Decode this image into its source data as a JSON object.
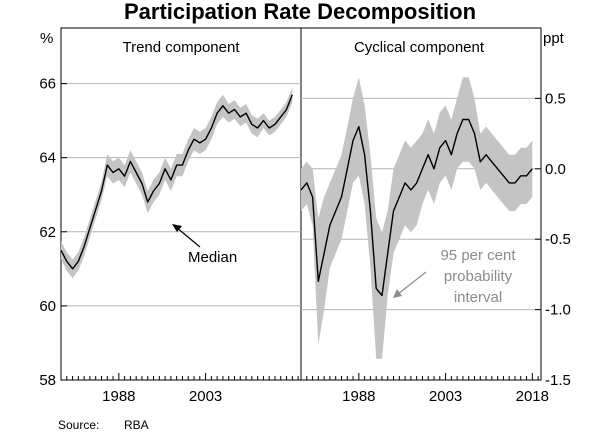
{
  "chart_data": {
    "type": "line",
    "title": "Participation Rate Decomposition",
    "source_label": "Source:",
    "source_value": "RBA",
    "panels": [
      {
        "title": "Trend component",
        "axis_unit": "%",
        "axis_side": "left",
        "ylim": [
          58,
          67.5
        ],
        "yticks": [
          58,
          60,
          62,
          64,
          66
        ],
        "ytick_labels": [
          "58",
          "60",
          "62",
          "64",
          "66"
        ],
        "xlim": [
          1978,
          2019.5
        ],
        "xticks": [
          1988,
          2003
        ],
        "xtick_labels": [
          "1988",
          "2003"
        ],
        "gridlines": [
          60,
          62,
          64,
          66
        ],
        "median_label": "Median",
        "median_series": [
          [
            1978.0,
            61.5
          ],
          [
            1979.0,
            61.2
          ],
          [
            1980.0,
            61.0
          ],
          [
            1981.0,
            61.2
          ],
          [
            1982.0,
            61.6
          ],
          [
            1983.0,
            62.1
          ],
          [
            1984.0,
            62.6
          ],
          [
            1985.0,
            63.1
          ],
          [
            1986.0,
            63.8
          ],
          [
            1987.0,
            63.6
          ],
          [
            1988.0,
            63.7
          ],
          [
            1989.0,
            63.5
          ],
          [
            1990.0,
            63.9
          ],
          [
            1991.0,
            63.6
          ],
          [
            1992.0,
            63.3
          ],
          [
            1993.0,
            62.8
          ],
          [
            1994.0,
            63.1
          ],
          [
            1995.0,
            63.3
          ],
          [
            1996.0,
            63.7
          ],
          [
            1997.0,
            63.4
          ],
          [
            1998.0,
            63.8
          ],
          [
            1999.0,
            63.8
          ],
          [
            2000.0,
            64.2
          ],
          [
            2001.0,
            64.5
          ],
          [
            2002.0,
            64.4
          ],
          [
            2003.0,
            64.5
          ],
          [
            2004.0,
            64.8
          ],
          [
            2005.0,
            65.2
          ],
          [
            2006.0,
            65.4
          ],
          [
            2007.0,
            65.2
          ],
          [
            2008.0,
            65.3
          ],
          [
            2009.0,
            65.1
          ],
          [
            2010.0,
            65.2
          ],
          [
            2011.0,
            64.9
          ],
          [
            2012.0,
            64.8
          ],
          [
            2013.0,
            65.0
          ],
          [
            2014.0,
            64.8
          ],
          [
            2015.0,
            64.9
          ],
          [
            2016.0,
            65.1
          ],
          [
            2017.0,
            65.3
          ],
          [
            2018.0,
            65.7
          ]
        ],
        "band_width": [
          0.25,
          0.25,
          0.25,
          0.25,
          0.25,
          0.25,
          0.25,
          0.25,
          0.3,
          0.3,
          0.3,
          0.3,
          0.3,
          0.3,
          0.3,
          0.3,
          0.3,
          0.3,
          0.3,
          0.3,
          0.3,
          0.3,
          0.3,
          0.3,
          0.3,
          0.3,
          0.3,
          0.3,
          0.3,
          0.25,
          0.25,
          0.25,
          0.25,
          0.25,
          0.25,
          0.2,
          0.2,
          0.2,
          0.2,
          0.2,
          0.2
        ]
      },
      {
        "title": "Cyclical component",
        "axis_unit": "ppt",
        "axis_side": "right",
        "ylim": [
          -1.5,
          1.0
        ],
        "yticks": [
          -1.5,
          -1.0,
          -0.5,
          0.0,
          0.5
        ],
        "ytick_labels": [
          "-1.5",
          "-1.0",
          "-0.5",
          "0.0",
          "0.5"
        ],
        "xlim": [
          1978,
          2019.5
        ],
        "xticks": [
          1988,
          2003,
          2018
        ],
        "xtick_labels": [
          "1988",
          "2003",
          "2018"
        ],
        "gridlines": [
          -1.0,
          -0.5,
          0.0,
          0.5
        ],
        "interval_label": [
          "95 per cent",
          "probability",
          "interval"
        ],
        "median_series": [
          [
            1978.0,
            -0.15
          ],
          [
            1979.0,
            -0.1
          ],
          [
            1980.0,
            -0.2
          ],
          [
            1981.0,
            -0.8
          ],
          [
            1982.0,
            -0.6
          ],
          [
            1983.0,
            -0.4
          ],
          [
            1984.0,
            -0.3
          ],
          [
            1985.0,
            -0.2
          ],
          [
            1986.0,
            0.0
          ],
          [
            1987.0,
            0.2
          ],
          [
            1988.0,
            0.3
          ],
          [
            1989.0,
            0.1
          ],
          [
            1990.0,
            -0.3
          ],
          [
            1991.0,
            -0.85
          ],
          [
            1992.0,
            -0.9
          ],
          [
            1993.0,
            -0.6
          ],
          [
            1994.0,
            -0.3
          ],
          [
            1995.0,
            -0.2
          ],
          [
            1996.0,
            -0.1
          ],
          [
            1997.0,
            -0.15
          ],
          [
            1998.0,
            -0.1
          ],
          [
            1999.0,
            0.0
          ],
          [
            2000.0,
            0.1
          ],
          [
            2001.0,
            0.0
          ],
          [
            2002.0,
            0.15
          ],
          [
            2003.0,
            0.2
          ],
          [
            2004.0,
            0.1
          ],
          [
            2005.0,
            0.25
          ],
          [
            2006.0,
            0.35
          ],
          [
            2007.0,
            0.35
          ],
          [
            2008.0,
            0.25
          ],
          [
            2009.0,
            0.05
          ],
          [
            2010.0,
            0.1
          ],
          [
            2011.0,
            0.05
          ],
          [
            2012.0,
            0.0
          ],
          [
            2013.0,
            -0.05
          ],
          [
            2014.0,
            -0.1
          ],
          [
            2015.0,
            -0.1
          ],
          [
            2016.0,
            -0.05
          ],
          [
            2017.0,
            -0.05
          ],
          [
            2018.0,
            0.0
          ]
        ],
        "band_width": [
          0.15,
          0.15,
          0.2,
          0.45,
          0.4,
          0.3,
          0.3,
          0.3,
          0.3,
          0.3,
          0.35,
          0.35,
          0.4,
          0.5,
          0.45,
          0.3,
          0.3,
          0.3,
          0.3,
          0.3,
          0.3,
          0.25,
          0.25,
          0.25,
          0.25,
          0.25,
          0.25,
          0.25,
          0.3,
          0.3,
          0.25,
          0.2,
          0.2,
          0.2,
          0.2,
          0.2,
          0.2,
          0.2,
          0.2,
          0.2,
          0.2
        ]
      }
    ],
    "colors": {
      "median_line": "#000000",
      "interval_band": "#c4c4c4",
      "gridline": "#b4b4b4",
      "interval_label": "#8c8c8c"
    }
  }
}
